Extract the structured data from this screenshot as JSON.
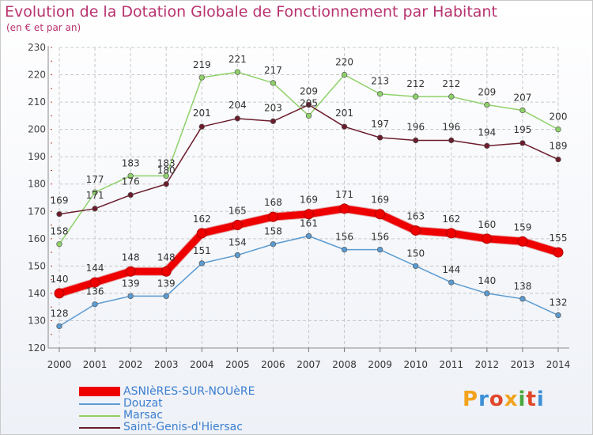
{
  "chart_data": {
    "type": "line",
    "title": "Evolution de la Dotation Globale de Fonctionnement par Habitant",
    "subtitle": "(en € et par an)",
    "xlabel": "",
    "ylabel": "",
    "ylim": [
      120,
      230
    ],
    "yticks": [
      120,
      130,
      140,
      150,
      160,
      170,
      180,
      190,
      200,
      210,
      220,
      230
    ],
    "grid": true,
    "legend_position": "bottom-left",
    "x": [
      "2000",
      "2001",
      "2002",
      "2003",
      "2004",
      "2005",
      "2006",
      "2007",
      "2008",
      "2009",
      "2010",
      "2011",
      "2012",
      "2013",
      "2014"
    ],
    "series": [
      {
        "name": "Marsac",
        "color": "#8fd16a",
        "values": [
          158,
          177,
          183,
          183,
          219,
          221,
          217,
          205,
          220,
          213,
          212,
          212,
          209,
          207,
          200
        ]
      },
      {
        "name": "Saint-Genis-d'Hiersac",
        "color": "#6b1c2c",
        "values": [
          169,
          171,
          176,
          180,
          201,
          204,
          203,
          209,
          201,
          197,
          196,
          196,
          194,
          195,
          189
        ]
      },
      {
        "name": "Douzat",
        "color": "#5b9bd1",
        "values": [
          128,
          136,
          139,
          139,
          151,
          154,
          158,
          161,
          156,
          156,
          150,
          144,
          140,
          138,
          132
        ]
      },
      {
        "name": "ASNIèRES-SUR-NOUèRE",
        "color": "#ee0000",
        "values": [
          140,
          144,
          148,
          148,
          162,
          165,
          168,
          169,
          171,
          169,
          163,
          162,
          160,
          159,
          155
        ]
      }
    ]
  },
  "legend": [
    {
      "label": "ASNIèRES-SUR-NOUèRE",
      "color": "#ee0000"
    },
    {
      "label": "Douzat",
      "color": "#5b9bd1"
    },
    {
      "label": "Marsac",
      "color": "#8fd16a"
    },
    {
      "label": "Saint-Genis-d'Hiersac",
      "color": "#6b1c2c"
    }
  ],
  "logo": {
    "letters": [
      "P",
      "r",
      "o",
      "x",
      "i",
      "t",
      "i"
    ],
    "colors": [
      "#f2a31b",
      "#3c8fd6",
      "#e0472b",
      "#f2a31b",
      "#4aa83e",
      "#e0472b",
      "#3c8fd6"
    ]
  }
}
